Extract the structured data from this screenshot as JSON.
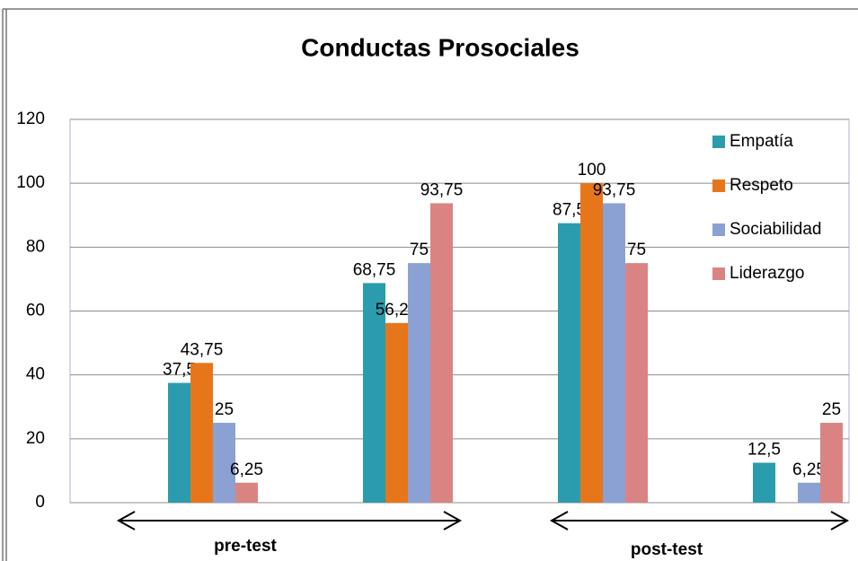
{
  "chart_data": {
    "type": "bar",
    "title": "Conductas Prosociales",
    "categories": [
      null,
      null,
      null,
      null
    ],
    "series": [
      {
        "name": "Empatía",
        "color": "#2b9cae",
        "values": [
          37.5,
          68.75,
          87.5,
          12.5
        ],
        "value_labels": [
          "37,5",
          "68,75",
          "87,5",
          "12,5"
        ]
      },
      {
        "name": "Respeto",
        "color": "#e7761b",
        "values": [
          43.75,
          56.25,
          100,
          null
        ],
        "value_labels": [
          "43,75",
          "56,25",
          "100",
          null
        ]
      },
      {
        "name": "Sociabilidad",
        "color": "#8ba1d4",
        "values": [
          25,
          75,
          93.75,
          6.25
        ],
        "value_labels": [
          "25",
          "75",
          "93,75",
          "6,25"
        ]
      },
      {
        "name": "Liderazgo",
        "color": "#d98483",
        "values": [
          6.25,
          93.75,
          75,
          25
        ],
        "value_labels": [
          "6,25",
          "93,75",
          "75",
          "25"
        ]
      }
    ],
    "ylim": [
      0,
      120
    ],
    "yticks": [
      0,
      20,
      40,
      60,
      80,
      100,
      120
    ],
    "grid": true,
    "legend": "upper right",
    "annotations": [
      "pre-test",
      "post-test"
    ]
  }
}
